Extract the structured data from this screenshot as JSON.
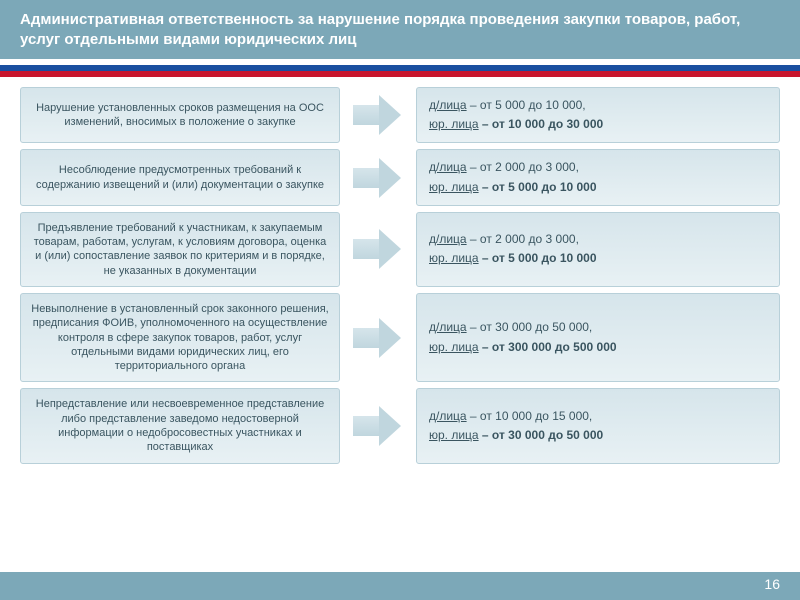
{
  "header": {
    "title": "Административная ответственность за нарушение порядка проведения закупки товаров, работ, услуг отдельными видами юридических лиц"
  },
  "rows": [
    {
      "left": "Нарушение установленных сроков размещения на ООС изменений, вносимых в положение о закупке",
      "d_label": "д/лица",
      "d_range": " – от 5 000 до 10 000,",
      "y_label": "юр. лица",
      "y_range": " – от 10 000 до 30 000"
    },
    {
      "left": "Несоблюдение предусмотренных требований к содержанию извещений и (или) документации о закупке",
      "d_label": "д/лица",
      "d_range": " – от 2 000 до 3 000,",
      "y_label": "юр. лица",
      "y_range": " – от 5 000 до 10 000"
    },
    {
      "left": "Предъявление требований к участникам, к закупаемым товарам, работам, услугам, к условиям договора, оценка и (или) сопоставление заявок по критериям и в порядке, не указанных в документации",
      "d_label": "д/лица",
      "d_range": " – от 2 000 до 3 000,",
      "y_label": "юр. лица",
      "y_range": " – от 5 000 до 10 000"
    },
    {
      "left": "Невыполнение в установленный срок законного решения, предписания ФОИВ, уполномоченного на осуществление контроля в сфере закупок товаров, работ, услуг отдельными видами юридических лиц, его территориального органа",
      "d_label": "д/лица",
      "d_range": " – от 30 000 до 50 000,",
      "y_label": "юр. лица",
      "y_range": " – от 300 000 до 500 000"
    },
    {
      "left": "Непредставление или несвоевременное представление либо представление заведомо недостоверной информации о недобросовестных участниках и поставщиках",
      "d_label": "д/лица",
      "d_range": " – от 10 000 до 15 000,",
      "y_label": "юр. лица",
      "y_range": " – от 30 000 до 50 000"
    }
  ],
  "page_number": "16",
  "colors": {
    "header_bg": "#7ca8b8",
    "box_bg_top": "#d6e5eb",
    "box_bg_bottom": "#e8f1f4",
    "box_border": "#b8d0d9",
    "text": "#3a5560"
  }
}
